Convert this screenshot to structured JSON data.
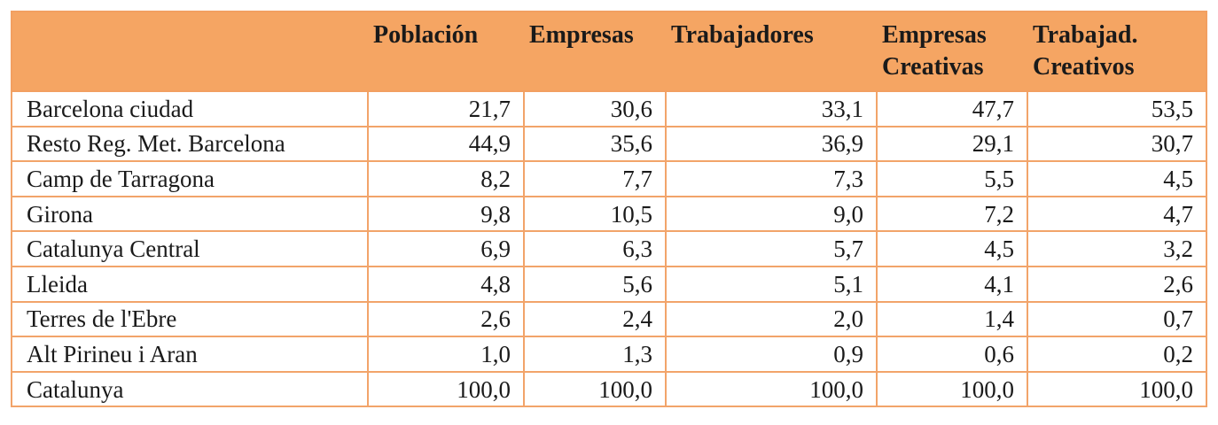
{
  "table": {
    "headers": [
      "",
      "Población",
      "Empresas",
      "Trabajadores",
      "Empresas Creativas",
      "Trabajad. Creativos"
    ],
    "rows": [
      {
        "region": "Barcelona ciudad",
        "values": [
          "21,7",
          "30,6",
          "33,1",
          "47,7",
          "53,5"
        ]
      },
      {
        "region": "Resto Reg. Met. Barcelona",
        "values": [
          "44,9",
          "35,6",
          "36,9",
          "29,1",
          "30,7"
        ]
      },
      {
        "region": "Camp de Tarragona",
        "values": [
          "8,2",
          "7,7",
          "7,3",
          "5,5",
          "4,5"
        ]
      },
      {
        "region": "Girona",
        "values": [
          "9,8",
          "10,5",
          "9,0",
          "7,2",
          "4,7"
        ]
      },
      {
        "region": "Catalunya Central",
        "values": [
          "6,9",
          "6,3",
          "5,7",
          "4,5",
          "3,2"
        ]
      },
      {
        "region": "Lleida",
        "values": [
          "4,8",
          "5,6",
          "5,1",
          "4,1",
          "2,6"
        ]
      },
      {
        "region": "Terres de l'Ebre",
        "values": [
          "2,6",
          "2,4",
          "2,0",
          "1,4",
          "0,7"
        ]
      },
      {
        "region": "Alt Pirineu i Aran",
        "values": [
          "1,0",
          "1,3",
          "0,9",
          "0,6",
          "0,2"
        ]
      },
      {
        "region": "Catalunya",
        "values": [
          "100,0",
          "100,0",
          "100,0",
          "100,0",
          "100,0"
        ]
      }
    ]
  },
  "colors": {
    "header_background": "#f5a563",
    "border": "#f2a46a",
    "text": "#1a1a1a"
  }
}
